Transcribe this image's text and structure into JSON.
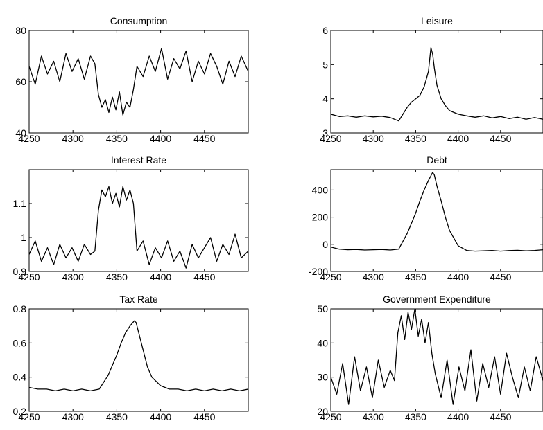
{
  "chart_data": [
    {
      "type": "line",
      "title": "Consumption",
      "xlim": [
        4250,
        4500
      ],
      "ylim": [
        40,
        80
      ],
      "xticks": [
        "4250",
        "4300",
        "4350",
        "4400",
        "4450"
      ],
      "yticks": [
        "40",
        "60",
        "80"
      ],
      "series": [
        {
          "values_x": [
            4250,
            4257,
            4264,
            4271,
            4278,
            4285,
            4292,
            4299,
            4306,
            4313,
            4320,
            4325,
            4329,
            4333,
            4337,
            4341,
            4345,
            4349,
            4353,
            4357,
            4361,
            4365,
            4369,
            4373,
            4380,
            4387,
            4394,
            4401,
            4408,
            4415,
            4422,
            4429,
            4436,
            4443,
            4450,
            4457,
            4464,
            4471,
            4478,
            4485,
            4492,
            4500
          ],
          "values": [
            66,
            59,
            70,
            63,
            68,
            60,
            71,
            64,
            69,
            61,
            70,
            67,
            55,
            50,
            53,
            48,
            54,
            49,
            56,
            47,
            52,
            50,
            57,
            66,
            62,
            70,
            64,
            73,
            61,
            69,
            65,
            72,
            60,
            68,
            63,
            71,
            66,
            59,
            68,
            62,
            70,
            64
          ]
        }
      ]
    },
    {
      "type": "line",
      "title": "Leisure",
      "xlim": [
        4250,
        4500
      ],
      "ylim": [
        3,
        6
      ],
      "xticks": [
        "4250",
        "4300",
        "4350",
        "4400",
        "4450"
      ],
      "yticks": [
        "3",
        "4",
        "5",
        "6"
      ],
      "series": [
        {
          "values_x": [
            4250,
            4260,
            4270,
            4280,
            4290,
            4300,
            4310,
            4320,
            4330,
            4335,
            4340,
            4345,
            4350,
            4355,
            4360,
            4365,
            4368,
            4370,
            4372,
            4375,
            4380,
            4385,
            4390,
            4400,
            4410,
            4420,
            4430,
            4440,
            4450,
            4460,
            4470,
            4480,
            4490,
            4500
          ],
          "values": [
            3.55,
            3.48,
            3.5,
            3.46,
            3.5,
            3.47,
            3.49,
            3.45,
            3.35,
            3.55,
            3.75,
            3.9,
            4.0,
            4.1,
            4.35,
            4.8,
            5.5,
            5.3,
            4.9,
            4.4,
            4.0,
            3.8,
            3.65,
            3.55,
            3.5,
            3.46,
            3.5,
            3.44,
            3.48,
            3.42,
            3.46,
            3.4,
            3.45,
            3.4
          ]
        }
      ]
    },
    {
      "type": "line",
      "title": "Interest Rate",
      "xlim": [
        4250,
        4500
      ],
      "ylim": [
        0.9,
        1.2
      ],
      "xticks": [
        "4250",
        "4300",
        "4350",
        "4400",
        "4450"
      ],
      "yticks": [
        "0.9",
        "1",
        "1.1"
      ],
      "series": [
        {
          "values_x": [
            4250,
            4257,
            4264,
            4271,
            4278,
            4285,
            4292,
            4299,
            4306,
            4313,
            4320,
            4325,
            4329,
            4333,
            4337,
            4341,
            4345,
            4349,
            4353,
            4357,
            4361,
            4365,
            4369,
            4373,
            4380,
            4387,
            4394,
            4401,
            4408,
            4415,
            4422,
            4429,
            4436,
            4443,
            4450,
            4457,
            4464,
            4471,
            4478,
            4485,
            4492,
            4500
          ],
          "values": [
            0.95,
            0.99,
            0.93,
            0.97,
            0.92,
            0.98,
            0.94,
            0.97,
            0.93,
            0.98,
            0.95,
            0.96,
            1.08,
            1.14,
            1.12,
            1.15,
            1.1,
            1.13,
            1.09,
            1.15,
            1.11,
            1.14,
            1.1,
            0.96,
            0.99,
            0.92,
            0.97,
            0.94,
            0.99,
            0.93,
            0.96,
            0.91,
            0.98,
            0.94,
            0.97,
            1.0,
            0.93,
            0.98,
            0.95,
            1.01,
            0.94,
            0.96
          ]
        }
      ]
    },
    {
      "type": "line",
      "title": "Debt",
      "xlim": [
        4250,
        4500
      ],
      "ylim": [
        -200,
        550
      ],
      "xticks": [
        "4250",
        "4300",
        "4350",
        "4400",
        "4450"
      ],
      "yticks": [
        "-200",
        "0",
        "200",
        "400"
      ],
      "series": [
        {
          "values_x": [
            4250,
            4260,
            4270,
            4280,
            4290,
            4300,
            4310,
            4320,
            4330,
            4340,
            4350,
            4355,
            4360,
            4365,
            4370,
            4372,
            4375,
            4380,
            4385,
            4390,
            4400,
            4410,
            4420,
            4430,
            4440,
            4450,
            4460,
            4470,
            4480,
            4490,
            4500
          ],
          "values": [
            -20,
            -35,
            -40,
            -38,
            -42,
            -40,
            -38,
            -42,
            -35,
            80,
            230,
            320,
            400,
            470,
            530,
            510,
            430,
            320,
            200,
            100,
            -10,
            -45,
            -50,
            -48,
            -45,
            -50,
            -46,
            -44,
            -48,
            -45,
            -40
          ]
        }
      ]
    },
    {
      "type": "line",
      "title": "Tax Rate",
      "xlim": [
        4250,
        4500
      ],
      "ylim": [
        0.2,
        0.8
      ],
      "xticks": [
        "4250",
        "4300",
        "4350",
        "4400",
        "4450"
      ],
      "yticks": [
        "0.2",
        "0.4",
        "0.6",
        "0.8"
      ],
      "series": [
        {
          "values_x": [
            4250,
            4260,
            4270,
            4280,
            4290,
            4300,
            4310,
            4320,
            4330,
            4340,
            4350,
            4355,
            4360,
            4365,
            4370,
            4372,
            4375,
            4380,
            4385,
            4390,
            4400,
            4410,
            4420,
            4430,
            4440,
            4450,
            4460,
            4470,
            4480,
            4490,
            4500
          ],
          "values": [
            0.34,
            0.33,
            0.33,
            0.32,
            0.33,
            0.32,
            0.33,
            0.32,
            0.33,
            0.41,
            0.53,
            0.6,
            0.66,
            0.7,
            0.73,
            0.72,
            0.66,
            0.56,
            0.46,
            0.4,
            0.35,
            0.33,
            0.33,
            0.32,
            0.33,
            0.32,
            0.33,
            0.32,
            0.33,
            0.32,
            0.33
          ]
        }
      ]
    },
    {
      "type": "line",
      "title": "Government Expenditure",
      "xlim": [
        4250,
        4500
      ],
      "ylim": [
        20,
        50
      ],
      "xticks": [
        "4250",
        "4300",
        "4350",
        "4400",
        "4450"
      ],
      "yticks": [
        "20",
        "30",
        "40",
        "50"
      ],
      "series": [
        {
          "values_x": [
            4250,
            4257,
            4264,
            4271,
            4278,
            4285,
            4292,
            4299,
            4306,
            4313,
            4320,
            4325,
            4329,
            4333,
            4337,
            4341,
            4345,
            4349,
            4353,
            4357,
            4361,
            4365,
            4369,
            4373,
            4380,
            4387,
            4394,
            4401,
            4408,
            4415,
            4422,
            4429,
            4436,
            4443,
            4450,
            4457,
            4464,
            4471,
            4478,
            4485,
            4492,
            4500
          ],
          "values": [
            30,
            25,
            34,
            22,
            36,
            26,
            33,
            24,
            35,
            27,
            32,
            29,
            43,
            48,
            41,
            49,
            44,
            50,
            42,
            47,
            40,
            46,
            37,
            31,
            24,
            35,
            22,
            33,
            26,
            38,
            23,
            34,
            27,
            36,
            25,
            37,
            30,
            24,
            33,
            26,
            36,
            29
          ]
        }
      ]
    }
  ]
}
